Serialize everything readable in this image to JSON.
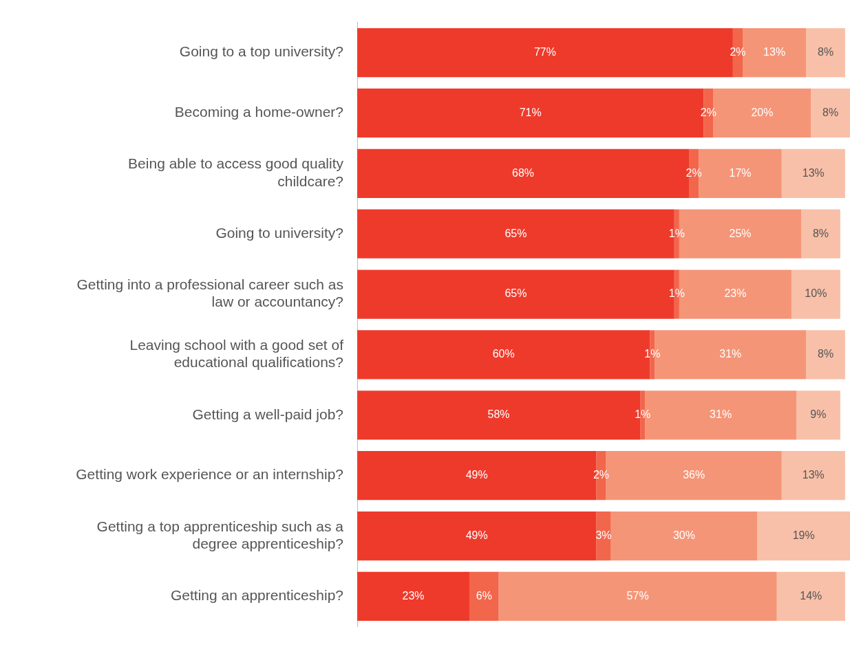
{
  "chart_data": {
    "type": "bar",
    "orientation": "horizontal",
    "stacked": true,
    "legend": false,
    "categories": [
      "Going to a top university?",
      "Becoming a home-owner?",
      "Being able to access good quality childcare?",
      "Going to university?",
      "Getting into a professional career such as law or accountancy?",
      "Leaving school with a good set of educational qualifications?",
      "Getting a well-paid job?",
      "Getting work experience or an internship?",
      "Getting a top apprenticeship such as a degree apprenticeship?",
      "Getting an apprenticeship?"
    ],
    "series": [
      {
        "color": "#ee3a2b",
        "values": [
          77,
          71,
          68,
          65,
          65,
          60,
          58,
          49,
          49,
          23
        ],
        "value_labels": [
          "77%",
          "71%",
          "68%",
          "65%",
          "65%",
          "60%",
          "58%",
          "49%",
          "49%",
          "23%"
        ]
      },
      {
        "color": "#f2664b",
        "values": [
          2,
          2,
          2,
          1,
          1,
          1,
          1,
          2,
          3,
          6
        ],
        "value_labels": [
          "2%",
          "2%",
          "2%",
          "1%",
          "1%",
          "1%",
          "1%",
          "2%",
          "3%",
          "6%"
        ]
      },
      {
        "color": "#f59577",
        "values": [
          13,
          20,
          17,
          25,
          23,
          31,
          31,
          36,
          30,
          57
        ],
        "value_labels": [
          "13%",
          "20%",
          "17%",
          "25%",
          "23%",
          "31%",
          "31%",
          "36%",
          "30%",
          "57%"
        ]
      },
      {
        "color": "#f8c0a8",
        "values": [
          8,
          8,
          13,
          8,
          10,
          8,
          9,
          13,
          19,
          14
        ],
        "value_labels": [
          "8%",
          "8%",
          "13%",
          "8%",
          "10%",
          "8%",
          "9%",
          "13%",
          "19%",
          "14%"
        ]
      }
    ]
  }
}
